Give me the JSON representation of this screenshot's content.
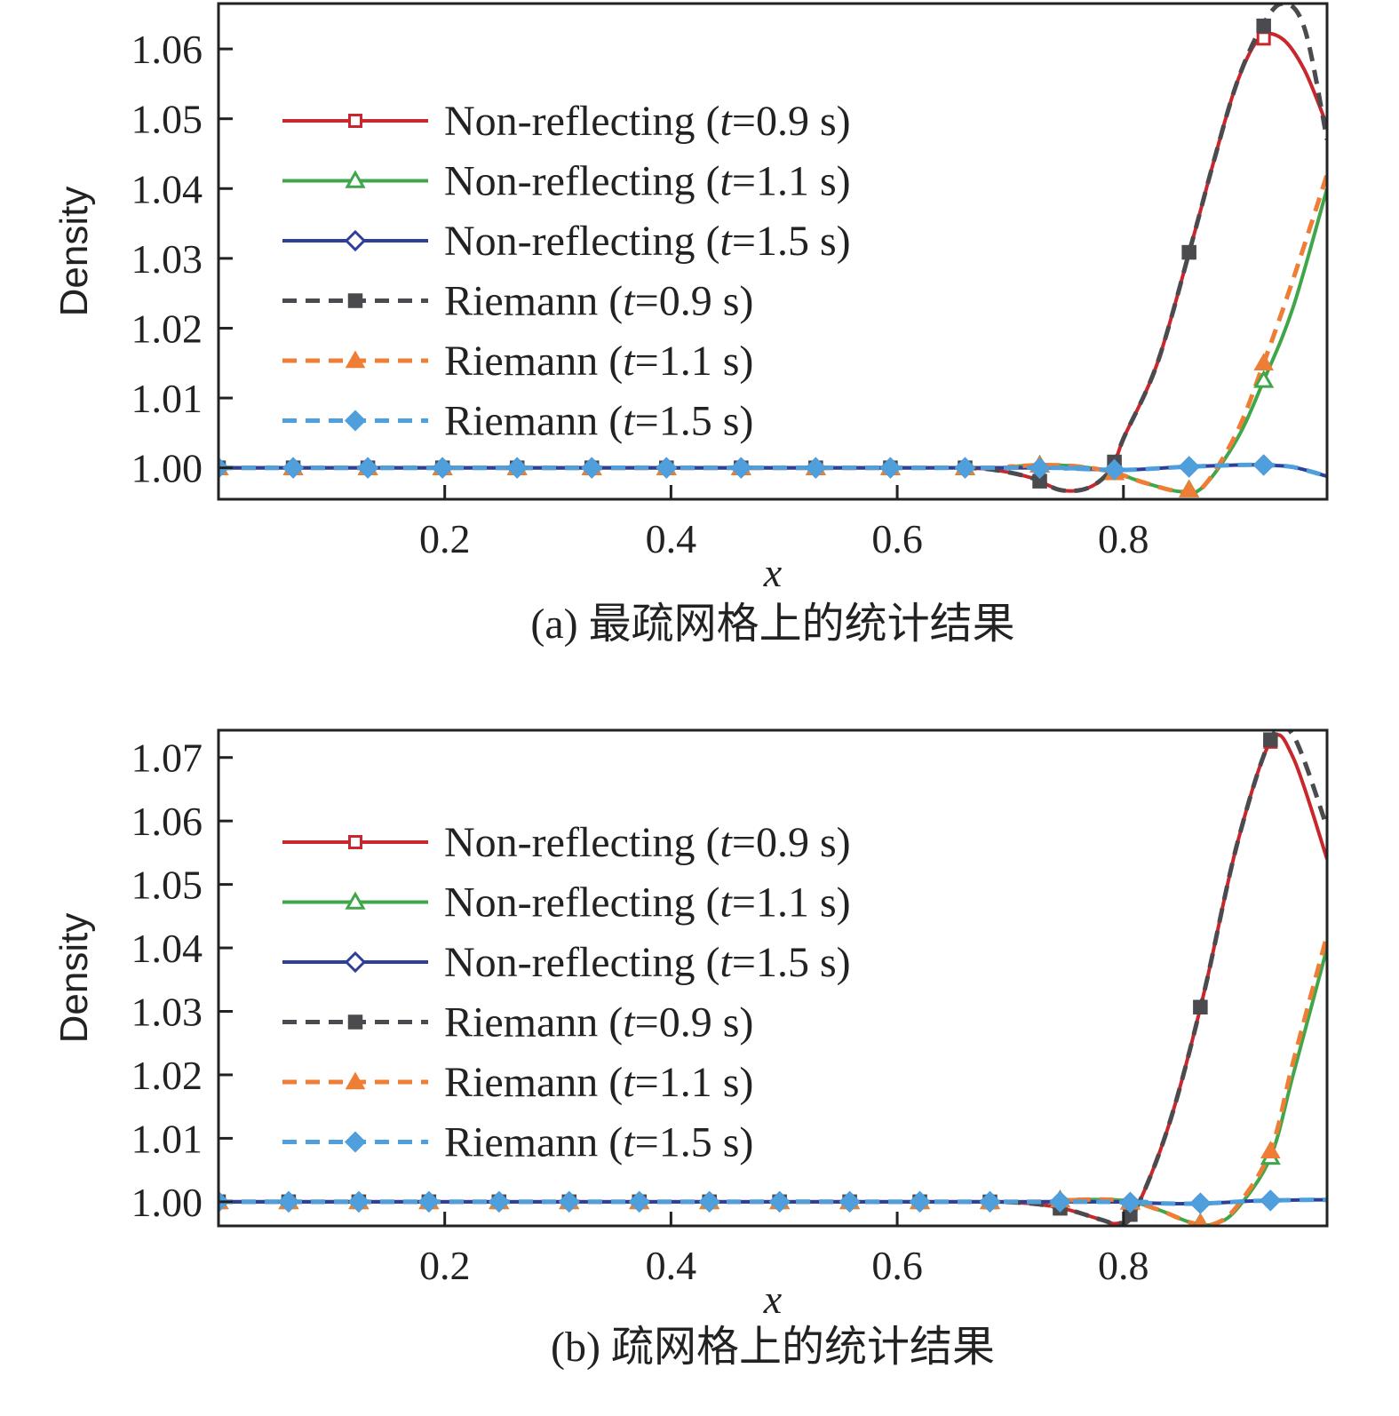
{
  "chart_data": [
    {
      "type": "line",
      "caption": "(a) 最疏网格上的统计结果",
      "xlabel": "x",
      "ylabel": "Density",
      "xlim": [
        0.0,
        0.98
      ],
      "ylim": [
        0.9955,
        1.0665
      ],
      "xticks": [
        0.2,
        0.4,
        0.6,
        0.8
      ],
      "xtick_labels": [
        "0.2",
        "0.4",
        "0.6",
        "0.8"
      ],
      "yticks": [
        1.0,
        1.01,
        1.02,
        1.03,
        1.04,
        1.05,
        1.06
      ],
      "ytick_labels": [
        "1.00",
        "1.01",
        "1.02",
        "1.03",
        "1.04",
        "1.05",
        "1.06"
      ],
      "grid": false,
      "legend_position": "upper-left",
      "marker_x": [
        0.0,
        0.066,
        0.132,
        0.198,
        0.264,
        0.33,
        0.396,
        0.462,
        0.528,
        0.594,
        0.66,
        0.726,
        0.792,
        0.858,
        0.924
      ],
      "series": [
        {
          "name": "Non-reflecting (t=0.9 s)",
          "legend_label": "Non-reflecting (",
          "t_value": "=0.9 s)",
          "color": "#c8282d",
          "dash": "solid",
          "marker": "open-square",
          "x": [
            0.0,
            0.6,
            0.66,
            0.69,
            0.72,
            0.745,
            0.77,
            0.79,
            0.8,
            0.83,
            0.86,
            0.88,
            0.9,
            0.92,
            0.94,
            0.96,
            0.98
          ],
          "y": [
            1.0,
            1.0,
            1.0,
            0.9996,
            0.9985,
            0.9968,
            0.9972,
            1.0,
            1.0042,
            1.015,
            1.032,
            1.044,
            1.055,
            1.0615,
            1.0615,
            1.057,
            1.049
          ]
        },
        {
          "name": "Non-reflecting (t=1.1 s)",
          "legend_label": "Non-reflecting (",
          "t_value": "=1.1 s)",
          "color": "#3fa64a",
          "dash": "solid",
          "marker": "open-triangle",
          "x": [
            0.0,
            0.66,
            0.7,
            0.73,
            0.76,
            0.79,
            0.82,
            0.85,
            0.87,
            0.9,
            0.924,
            0.95,
            0.98
          ],
          "y": [
            1.0,
            1.0,
            1.0002,
            1.0004,
            1.0002,
            0.9994,
            0.9978,
            0.9966,
            0.9972,
            1.004,
            1.0125,
            1.023,
            1.04
          ]
        },
        {
          "name": "Non-reflecting (t=1.5 s)",
          "legend_label": "Non-reflecting (",
          "t_value": "=1.5 s)",
          "color": "#2e3f9a",
          "dash": "solid",
          "marker": "open-diamond",
          "x": [
            0.0,
            0.7,
            0.75,
            0.8,
            0.85,
            0.9,
            0.924,
            0.95,
            0.98
          ],
          "y": [
            1.0,
            1.0,
            0.9999,
            0.9997,
            1.0001,
            1.0004,
            1.0004,
            1.0001,
            0.9988
          ]
        },
        {
          "name": "Riemann (t=0.9 s)",
          "legend_label": "Riemann (",
          "t_value": "=0.9 s)",
          "color": "#4a4a4f",
          "dash": "dashed",
          "marker": "filled-square",
          "x": [
            0.0,
            0.6,
            0.66,
            0.69,
            0.72,
            0.745,
            0.77,
            0.79,
            0.8,
            0.83,
            0.86,
            0.88,
            0.9,
            0.92,
            0.94,
            0.96,
            0.98
          ],
          "y": [
            1.0,
            1.0,
            1.0,
            0.9996,
            0.9985,
            0.9968,
            0.9972,
            1.0,
            1.0042,
            1.015,
            1.032,
            1.044,
            1.055,
            1.0625,
            1.0665,
            1.063,
            1.047
          ]
        },
        {
          "name": "Riemann (t=1.1 s)",
          "legend_label": "Riemann (",
          "t_value": "=1.1 s)",
          "color": "#ee7d35",
          "dash": "dashed",
          "marker": "filled-triangle",
          "x": [
            0.0,
            0.66,
            0.7,
            0.73,
            0.76,
            0.79,
            0.82,
            0.85,
            0.87,
            0.9,
            0.924,
            0.95,
            0.98
          ],
          "y": [
            1.0,
            1.0,
            1.0002,
            1.0004,
            1.0002,
            0.9994,
            0.9978,
            0.9966,
            0.9972,
            1.005,
            1.015,
            1.027,
            1.042
          ]
        },
        {
          "name": "Riemann (t=1.5 s)",
          "legend_label": "Riemann (",
          "t_value": "=1.5 s)",
          "color": "#4e9fdc",
          "dash": "dashed",
          "marker": "filled-diamond",
          "x": [
            0.0,
            0.7,
            0.75,
            0.8,
            0.85,
            0.9,
            0.924,
            0.95,
            0.98
          ],
          "y": [
            1.0,
            1.0,
            0.9999,
            0.9997,
            1.0001,
            1.0004,
            1.0004,
            1.0001,
            0.9988
          ]
        }
      ]
    },
    {
      "type": "line",
      "caption": "(b) 疏网格上的统计结果",
      "xlabel": "x",
      "ylabel": "Density",
      "xlim": [
        0.0,
        0.98
      ],
      "ylim": [
        0.9962,
        1.0743
      ],
      "xticks": [
        0.2,
        0.4,
        0.6,
        0.8
      ],
      "xtick_labels": [
        "0.2",
        "0.4",
        "0.6",
        "0.8"
      ],
      "yticks": [
        1.0,
        1.01,
        1.02,
        1.03,
        1.04,
        1.05,
        1.06,
        1.07
      ],
      "ytick_labels": [
        "1.00",
        "1.01",
        "1.02",
        "1.03",
        "1.04",
        "1.05",
        "1.06",
        "1.07"
      ],
      "grid": false,
      "legend_position": "upper-left",
      "marker_x": [
        0.0,
        0.062,
        0.124,
        0.186,
        0.248,
        0.31,
        0.372,
        0.434,
        0.496,
        0.558,
        0.62,
        0.682,
        0.744,
        0.806,
        0.868,
        0.93
      ],
      "series": [
        {
          "name": "Non-reflecting (t=0.9 s)",
          "legend_label": "Non-reflecting (",
          "t_value": "=0.9 s)",
          "color": "#c8282d",
          "dash": "solid",
          "marker": "open-square",
          "x": [
            0.0,
            0.62,
            0.68,
            0.72,
            0.75,
            0.78,
            0.795,
            0.81,
            0.84,
            0.87,
            0.9,
            0.93,
            0.95,
            0.98
          ],
          "y": [
            1.0,
            1.0,
            1.0,
            0.9997,
            0.9988,
            0.9972,
            0.9966,
            0.9985,
            1.012,
            1.032,
            1.056,
            1.0725,
            1.07,
            1.054
          ]
        },
        {
          "name": "Non-reflecting (t=1.1 s)",
          "legend_label": "Non-reflecting (",
          "t_value": "=1.1 s)",
          "color": "#3fa64a",
          "dash": "solid",
          "marker": "open-triangle",
          "x": [
            0.0,
            0.7,
            0.75,
            0.8,
            0.83,
            0.86,
            0.88,
            0.9,
            0.93,
            0.95,
            0.98
          ],
          "y": [
            1.0,
            1.0,
            1.0003,
            1.0002,
            0.9988,
            0.9967,
            0.9965,
            0.9988,
            1.007,
            1.02,
            1.04
          ]
        },
        {
          "name": "Non-reflecting (t=1.5 s)",
          "legend_label": "Non-reflecting (",
          "t_value": "=1.5 s)",
          "color": "#2e3f9a",
          "dash": "solid",
          "marker": "open-diamond",
          "x": [
            0.0,
            0.75,
            0.8,
            0.85,
            0.88,
            0.91,
            0.93,
            0.96,
            0.98
          ],
          "y": [
            1.0,
            1.0,
            0.9999,
            0.9997,
            0.9998,
            1.0001,
            1.0002,
            1.0003,
            1.0003
          ]
        },
        {
          "name": "Riemann (t=0.9 s)",
          "legend_label": "Riemann (",
          "t_value": "=0.9 s)",
          "color": "#4a4a4f",
          "dash": "dashed",
          "marker": "filled-square",
          "x": [
            0.0,
            0.62,
            0.68,
            0.72,
            0.75,
            0.78,
            0.795,
            0.81,
            0.84,
            0.87,
            0.9,
            0.93,
            0.95,
            0.98
          ],
          "y": [
            1.0,
            1.0,
            1.0,
            0.9997,
            0.9988,
            0.9972,
            0.9966,
            0.9985,
            1.012,
            1.032,
            1.056,
            1.0728,
            1.0735,
            1.059
          ]
        },
        {
          "name": "Riemann (t=1.1 s)",
          "legend_label": "Riemann (",
          "t_value": "=1.1 s)",
          "color": "#ee7d35",
          "dash": "dashed",
          "marker": "filled-triangle",
          "x": [
            0.0,
            0.7,
            0.75,
            0.8,
            0.83,
            0.86,
            0.88,
            0.9,
            0.93,
            0.95,
            0.98
          ],
          "y": [
            1.0,
            1.0,
            1.0003,
            1.0002,
            0.9988,
            0.9967,
            0.9965,
            0.9992,
            1.008,
            1.022,
            1.042
          ]
        },
        {
          "name": "Riemann (t=1.5 s)",
          "legend_label": "Riemann (",
          "t_value": "=1.5 s)",
          "color": "#4e9fdc",
          "dash": "dashed",
          "marker": "filled-diamond",
          "x": [
            0.0,
            0.75,
            0.8,
            0.85,
            0.88,
            0.91,
            0.93,
            0.96,
            0.98
          ],
          "y": [
            1.0,
            1.0,
            0.9999,
            0.9997,
            0.9998,
            1.0001,
            1.0002,
            1.0003,
            1.0003
          ]
        }
      ]
    }
  ]
}
